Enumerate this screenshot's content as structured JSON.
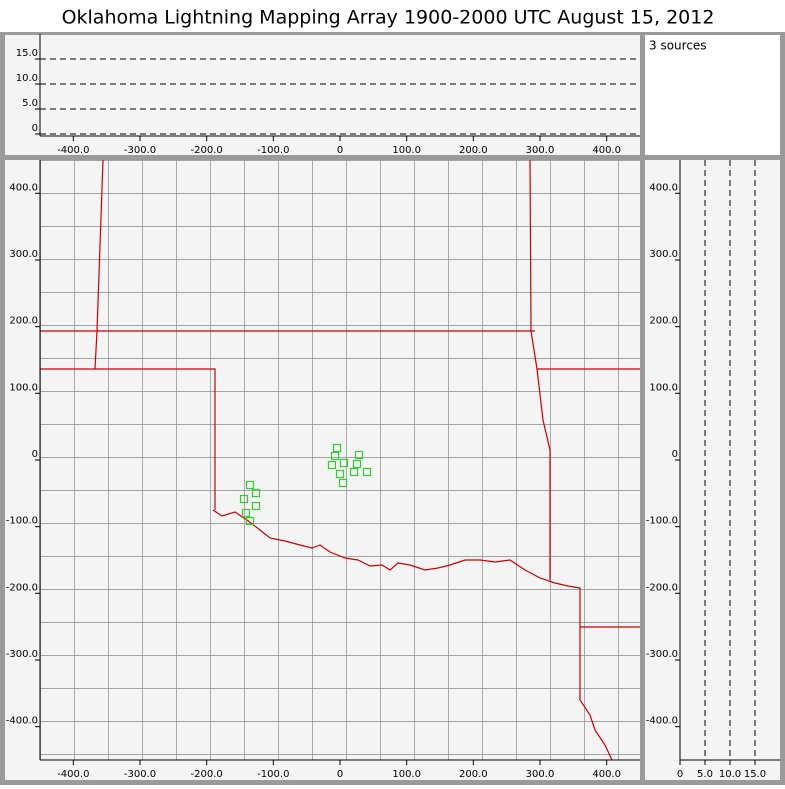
{
  "chart_data": [
    {
      "type": "scatter",
      "title": "Oklahoma Lightning Mapping Array   1900-2000 UTC  August 15, 2012",
      "series": [
        {
          "color": "#33cc33",
          "x": [
            -4.5,
            -7.5,
            6,
            -12,
            28.5,
            25.5,
            21,
            0,
            40.5,
            4.5,
            -135,
            -126,
            -144,
            -126,
            -141,
            -135
          ],
          "values": [
            18,
            6,
            -4.5,
            -7.5,
            7.5,
            -6,
            -18,
            -21,
            -18,
            -34.5,
            -37.5,
            -49.5,
            -58.5,
            -69,
            -79.5,
            -91.5
          ]
        }
      ],
      "xlim": [
        -450,
        450
      ],
      "ylim": [
        -450,
        450
      ],
      "xticks": [
        {
          "value": -400,
          "label": "-400.0"
        },
        {
          "value": -300,
          "label": "-300.0"
        },
        {
          "value": -200,
          "label": "-200.0"
        },
        {
          "value": -100,
          "label": "-100.0"
        },
        0,
        {
          "value": 100,
          "label": "100.0"
        },
        {
          "value": 200,
          "label": "200.0"
        },
        {
          "value": 300,
          "label": "300.0"
        },
        {
          "value": 400,
          "label": "400.0"
        }
      ],
      "yticks": [
        {
          "value": -400,
          "label": "-400.0"
        },
        {
          "value": -300,
          "label": "-300.0"
        },
        {
          "value": -200,
          "label": "-200.0"
        },
        {
          "value": -100,
          "label": "-100.0"
        },
        0,
        {
          "value": 100,
          "label": "100.0"
        },
        {
          "value": 200,
          "label": "200.0"
        },
        {
          "value": 300,
          "label": "300.0"
        },
        {
          "value": 400,
          "label": "400.0"
        }
      ]
    },
    {
      "type": "altitude",
      "annotation": "3 sources",
      "xlim": [
        -450,
        450
      ],
      "ylim": [
        0,
        20
      ],
      "xticks": [
        {
          "value": -400,
          "label": "-400.0"
        },
        {
          "value": -300,
          "label": "-300.0"
        },
        {
          "value": -200,
          "label": "-200.0"
        },
        {
          "value": -100,
          "label": "-100.0"
        },
        0,
        {
          "value": 100,
          "label": "100.0"
        },
        {
          "value": 200,
          "label": "200.0"
        },
        {
          "value": 300,
          "label": "300.0"
        },
        {
          "value": 400,
          "label": "400.0"
        }
      ],
      "yticks": [
        0,
        {
          "value": 5,
          "label": "5.0"
        },
        {
          "value": 10,
          "label": "10.0"
        },
        {
          "value": 15,
          "label": "15.0"
        }
      ],
      "grid": "y"
    },
    {
      "type": "altitude",
      "xlim": [
        0,
        20
      ],
      "ylim": [
        -450,
        450
      ],
      "xticks": [
        0,
        {
          "value": 5,
          "label": "5.0"
        },
        {
          "value": 10,
          "label": "10.0"
        },
        {
          "value": 15,
          "label": "15.0"
        }
      ],
      "yticks": [
        {
          "value": -400,
          "label": "-400.0"
        },
        {
          "value": -300,
          "label": "-300.0"
        },
        {
          "value": -200,
          "label": "-200.0"
        },
        {
          "value": -100,
          "label": "-100.0"
        },
        0,
        {
          "value": 100,
          "label": "100.0"
        },
        {
          "value": 200,
          "label": "200.0"
        },
        {
          "value": 300,
          "label": "300.0"
        },
        {
          "value": 400,
          "label": "400.0"
        }
      ],
      "grid": "x"
    }
  ]
}
